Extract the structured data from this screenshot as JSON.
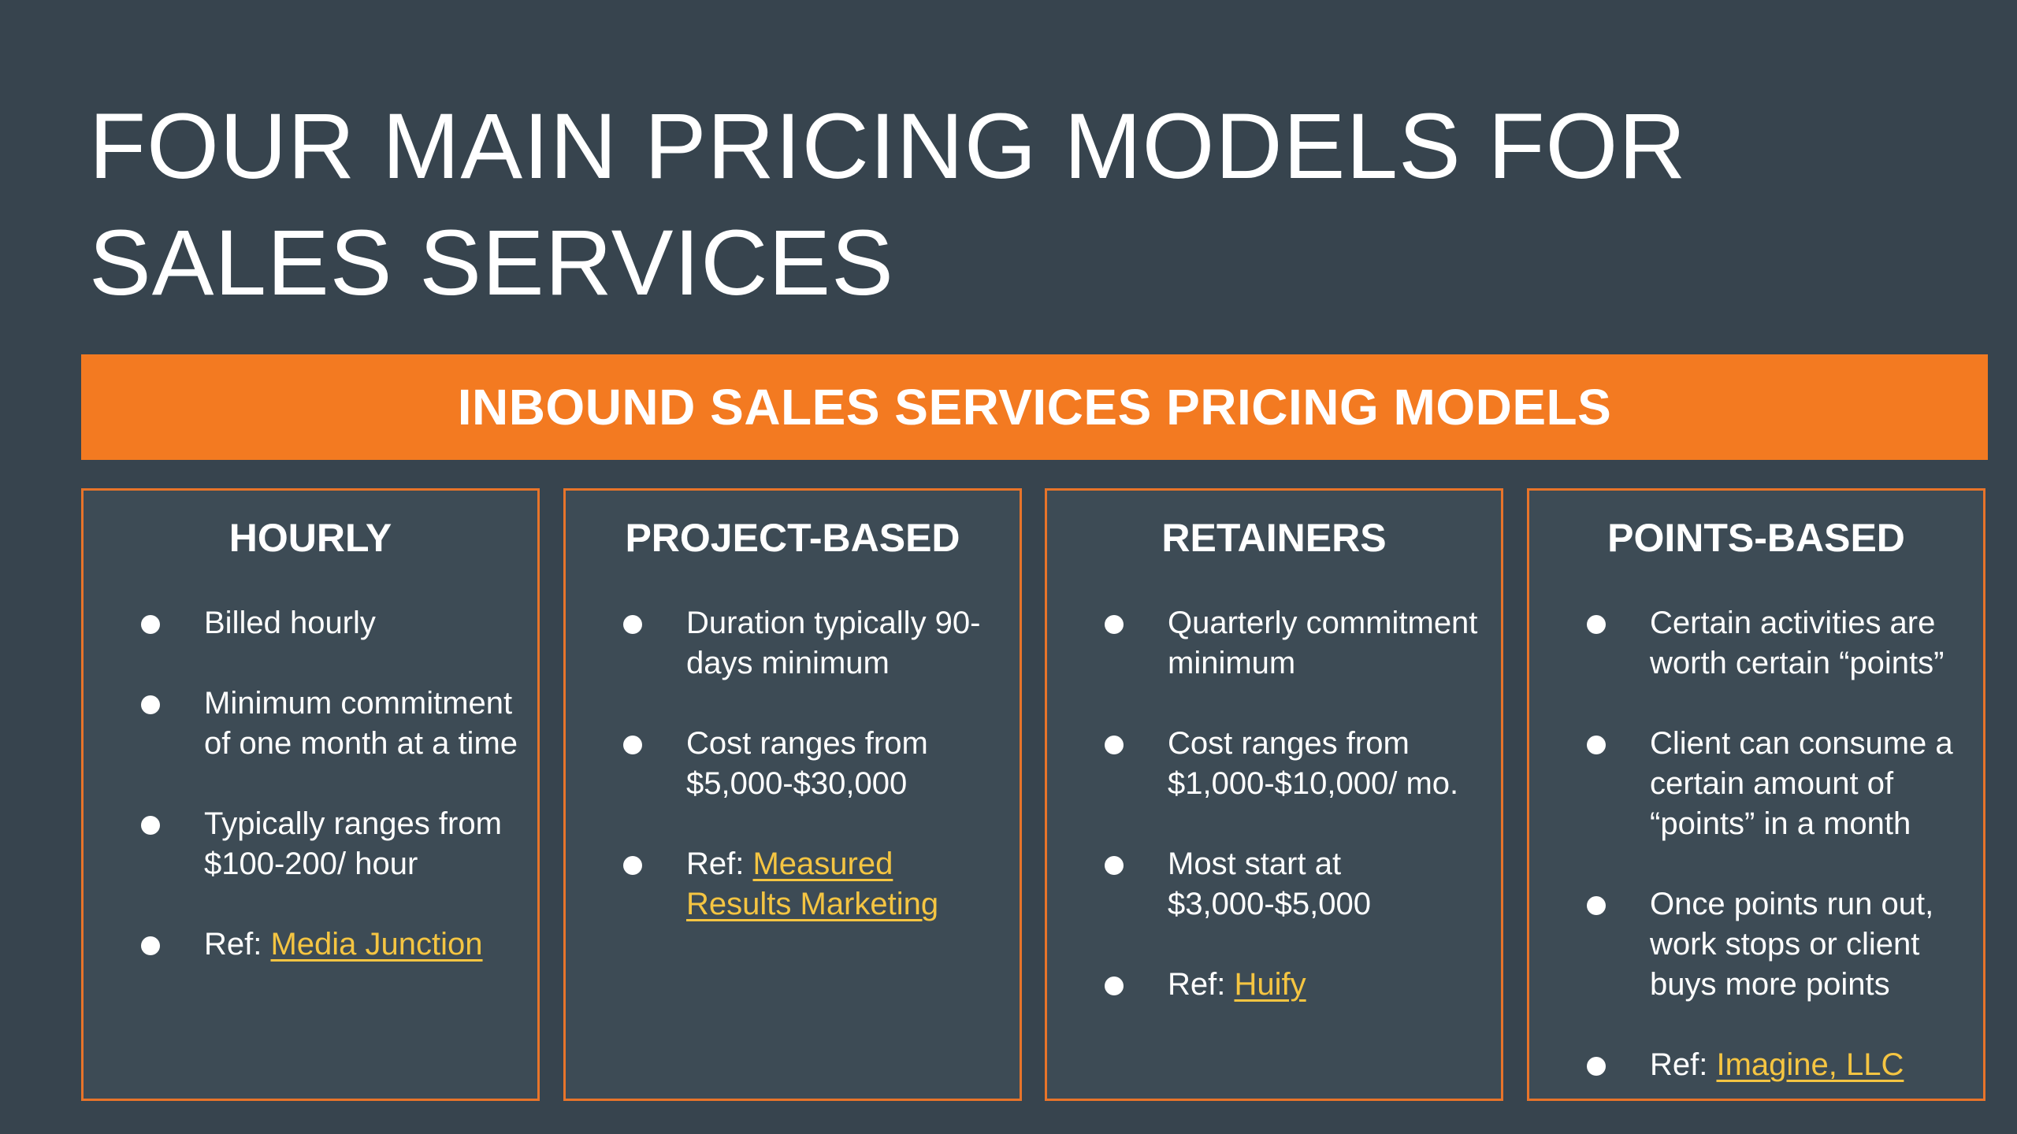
{
  "slide": {
    "title_line1": "FOUR MAIN PRICING MODELS FOR",
    "title_line2": "SALES SERVICES",
    "banner": "INBOUND SALES SERVICES PRICING MODELS"
  },
  "colors": {
    "background": "#37444e",
    "card_background": "#3d4b55",
    "accent_orange": "#f37a21",
    "link_yellow": "#f5c542",
    "text": "#ffffff"
  },
  "cards": [
    {
      "title": "HOURLY",
      "items": [
        "Billed hourly",
        "Minimum commitment of one month at a time",
        "Typically ranges from $100-200/ hour"
      ],
      "ref_prefix": "Ref: ",
      "ref_link": "Media Junction"
    },
    {
      "title": "PROJECT-BASED",
      "items": [
        "Duration typically 90-days minimum",
        "Cost ranges from $5,000-$30,000"
      ],
      "ref_prefix": "Ref: ",
      "ref_link": "Measured Results Marketing"
    },
    {
      "title": "RETAINERS",
      "items": [
        "Quarterly commitment minimum",
        "Cost ranges from $1,000-$10,000/ mo.",
        "Most start at $3,000-$5,000"
      ],
      "ref_prefix": "Ref: ",
      "ref_link": "Huify"
    },
    {
      "title": "POINTS-BASED",
      "items": [
        "Certain activities are worth certain “points”",
        "Client can consume a certain amount of “points” in a month",
        "Once points run out, work stops or client buys more points"
      ],
      "ref_prefix": "Ref: ",
      "ref_link": "Imagine, LLC"
    }
  ]
}
